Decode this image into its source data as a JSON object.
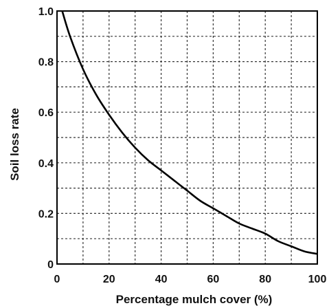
{
  "chart_data": {
    "type": "line",
    "title": "",
    "xlabel": "Percentage mulch cover (%)",
    "ylabel": "Soil loss rate",
    "xlim": [
      0,
      100
    ],
    "ylim": [
      0,
      1.0
    ],
    "x_ticks": [
      "0",
      "20",
      "40",
      "60",
      "80",
      "100"
    ],
    "y_ticks": [
      "0",
      "0.2",
      "0.4",
      "0.6",
      "0.8",
      "1.0"
    ],
    "grid": true,
    "grid_style": "dashed",
    "series": [
      {
        "x": [
          2,
          5,
          10,
          15,
          20,
          25,
          30,
          35,
          40,
          45,
          50,
          55,
          60,
          65,
          70,
          75,
          80,
          85,
          90,
          95,
          100
        ],
        "y": [
          1.0,
          0.9,
          0.77,
          0.67,
          0.59,
          0.52,
          0.46,
          0.41,
          0.37,
          0.33,
          0.29,
          0.25,
          0.22,
          0.19,
          0.16,
          0.14,
          0.12,
          0.09,
          0.07,
          0.05,
          0.04
        ],
        "color": "#000000"
      }
    ]
  }
}
